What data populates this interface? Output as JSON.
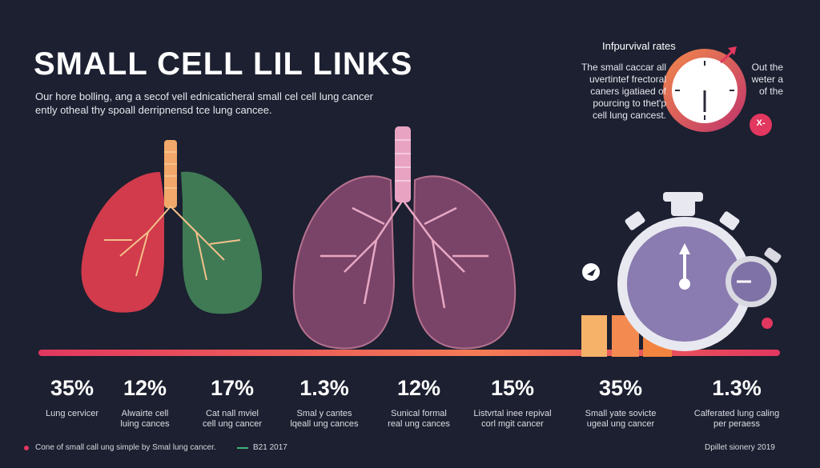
{
  "title": "SMALL CELL LIL LINKS",
  "intro": {
    "line1": "Our hore bolling, ang a secof vell ednicaticheral small cel cell lung cancer",
    "line2": "ently otheal thy spoall derripnensd tce lung cancee."
  },
  "rates_panel": {
    "title": "Infpurvival rates",
    "left_lines": [
      "The small caccar all",
      "uvertintef frectoral",
      "caners igatiaed of",
      "pourcing to thet'p",
      "cell lung cancest."
    ],
    "right_lines": [
      "Out the",
      "weter a",
      "of the"
    ],
    "badge_label": "X-"
  },
  "stats": [
    {
      "value": "35%",
      "label_lines": [
        "Lung cervicer"
      ]
    },
    {
      "value": "12%",
      "label_lines": [
        "Alwairte cell",
        "luing cances"
      ]
    },
    {
      "value": "17%",
      "label_lines": [
        "Cat nall mviel",
        "cell ung cancer"
      ]
    },
    {
      "value": "1.3%",
      "label_lines": [
        "Smal y cantes",
        "lqeall ung cances"
      ]
    },
    {
      "value": "12%",
      "label_lines": [
        "Sunical formal",
        "real ung cances"
      ]
    },
    {
      "value": "15%",
      "label_lines": [
        "Listvrtal inee repival",
        "corl mgit cancer"
      ]
    },
    {
      "value": "35%",
      "label_lines": [
        "Small yate sovicte",
        "ugeal ung cancer"
      ]
    },
    {
      "value": "1.3%",
      "label_lines": [
        "Calferated lung caling",
        "per peraess"
      ]
    }
  ],
  "footer": {
    "left_note": "Cone of small call ung simple by Smal lung cancer.",
    "mid_note": "B21 2017",
    "right_note": "Dpillet sionery 2019"
  },
  "colors": {
    "background": "#1c2030",
    "lung_red": "#d13b4c",
    "lung_green": "#3f7a55",
    "lung_purple": "#7a4468",
    "accent_orange": "#f18a4a",
    "accent_pink": "#e2375f",
    "stopwatch_purple": "#8a7bb0"
  },
  "icons": [
    "stopwatch-icon",
    "timer-icon",
    "arrow-icon",
    "lungs-illustration"
  ]
}
